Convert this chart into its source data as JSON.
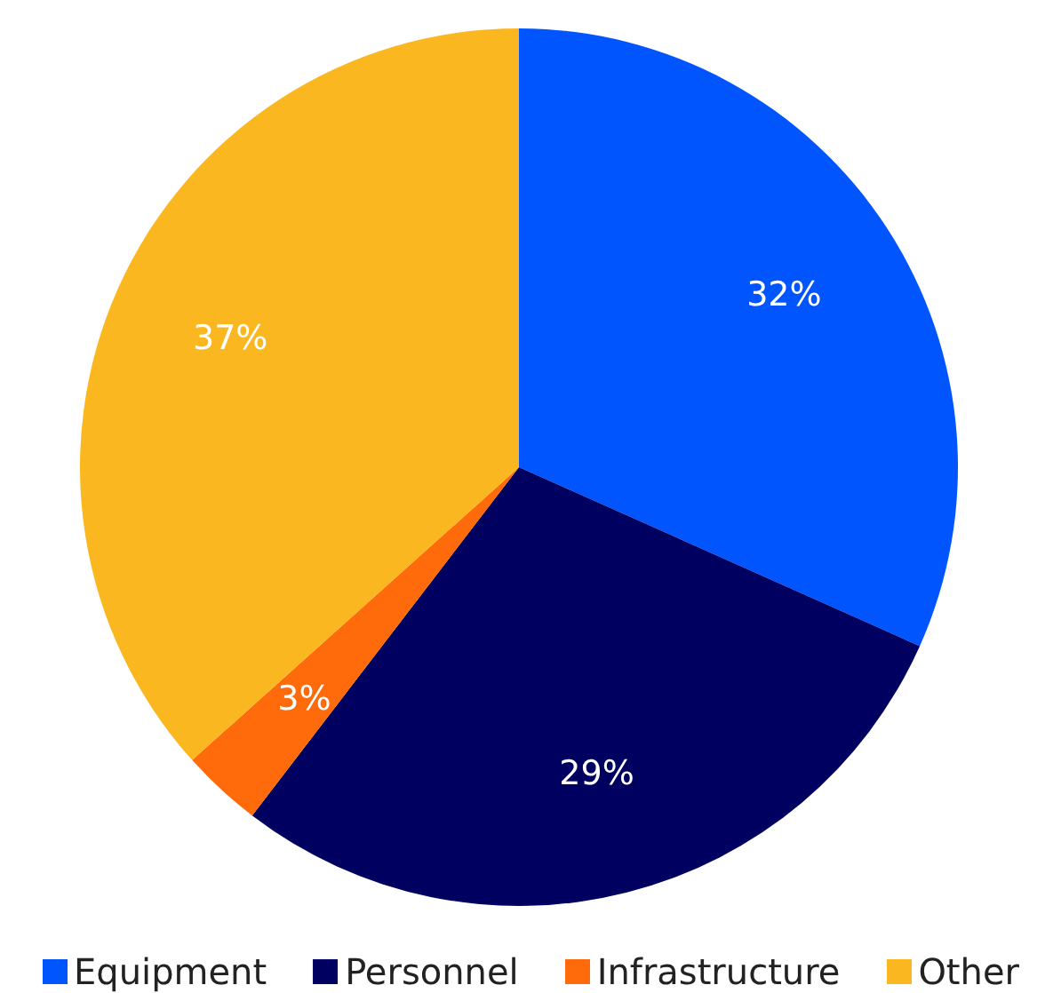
{
  "chart_data": {
    "type": "pie",
    "categories": [
      "Equipment",
      "Personnel",
      "Infrastructure",
      "Other"
    ],
    "values": [
      32,
      29,
      3,
      37
    ],
    "value_labels": [
      "32%",
      "29%",
      "3%",
      "37%"
    ],
    "colors": [
      "#0055ff",
      "#000060",
      "#ff6a0a",
      "#fbb71f"
    ],
    "legend": "bottom"
  }
}
